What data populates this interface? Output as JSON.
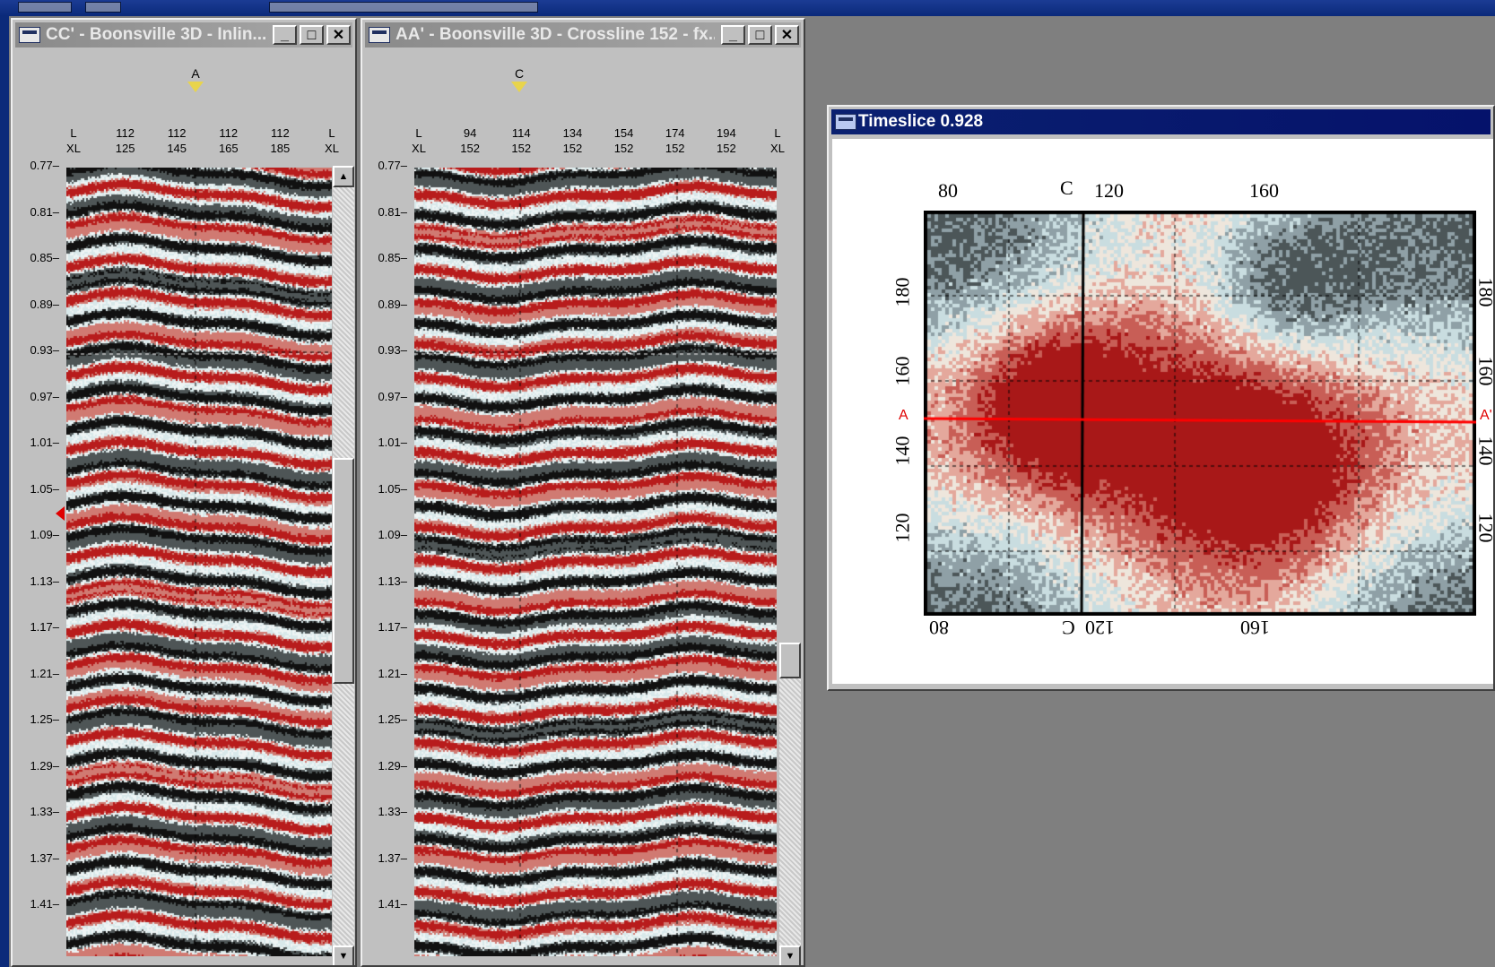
{
  "top_strip": {},
  "window_inline": {
    "title": "CC' - Boonsville 3D - Inlin...",
    "minimize": "_",
    "maximize": "□",
    "close": "✕",
    "section_marker": "A",
    "x_labels": [
      {
        "line1": "L",
        "line2": "XL"
      },
      {
        "line1": "112",
        "line2": "125"
      },
      {
        "line1": "112",
        "line2": "145"
      },
      {
        "line1": "112",
        "line2": "165"
      },
      {
        "line1": "112",
        "line2": "185"
      },
      {
        "line1": "L",
        "line2": "XL"
      }
    ],
    "y_labels": [
      "0.77",
      "0.81",
      "0.85",
      "0.89",
      "0.93",
      "0.97",
      "1.01",
      "1.05",
      "1.09",
      "1.13",
      "1.17",
      "1.21",
      "1.25",
      "1.29",
      "1.33",
      "1.37",
      "1.41"
    ]
  },
  "window_crossline": {
    "title": "AA' - Boonsville 3D - Crossline 152 - fx...",
    "minimize": "_",
    "maximize": "□",
    "close": "✕",
    "section_marker": "C",
    "x_labels": [
      {
        "line1": "L",
        "line2": "XL"
      },
      {
        "line1": "94",
        "line2": "152"
      },
      {
        "line1": "114",
        "line2": "152"
      },
      {
        "line1": "134",
        "line2": "152"
      },
      {
        "line1": "154",
        "line2": "152"
      },
      {
        "line1": "174",
        "line2": "152"
      },
      {
        "line1": "194",
        "line2": "152"
      },
      {
        "line1": "L",
        "line2": "XL"
      }
    ],
    "y_labels": [
      "0.77",
      "0.81",
      "0.85",
      "0.89",
      "0.93",
      "0.97",
      "1.01",
      "1.05",
      "1.09",
      "1.13",
      "1.17",
      "1.21",
      "1.25",
      "1.29",
      "1.33",
      "1.37",
      "1.41"
    ]
  },
  "window_timeslice": {
    "title": "Timeslice 0.928",
    "top_labels": [
      "80",
      "120",
      "160"
    ],
    "top_c_label": "C",
    "bottom_labels": [
      "80",
      "120",
      "160"
    ],
    "bottom_c_label": "C",
    "left_labels": [
      "180",
      "160",
      "140",
      "120"
    ],
    "right_labels": [
      "180",
      "160",
      "140",
      "120"
    ],
    "a_left": "A",
    "a_right": "A'"
  },
  "colors": {
    "seismic_positive": "#b81c1c",
    "seismic_negative": "#111111",
    "seismic_mid": "#d8e8ea",
    "section_line": "#ff0000",
    "active_title": "#0a2070",
    "inactive_title": "#8a8a8a",
    "desktop": "#0b2a7a",
    "mdi_bg": "#7f7f7f"
  },
  "icons": [
    "window-app-icon",
    "minimize-icon",
    "maximize-icon",
    "close-icon",
    "scroll-up-arrow-icon",
    "scroll-down-arrow-icon",
    "marker-triangle-icon"
  ]
}
